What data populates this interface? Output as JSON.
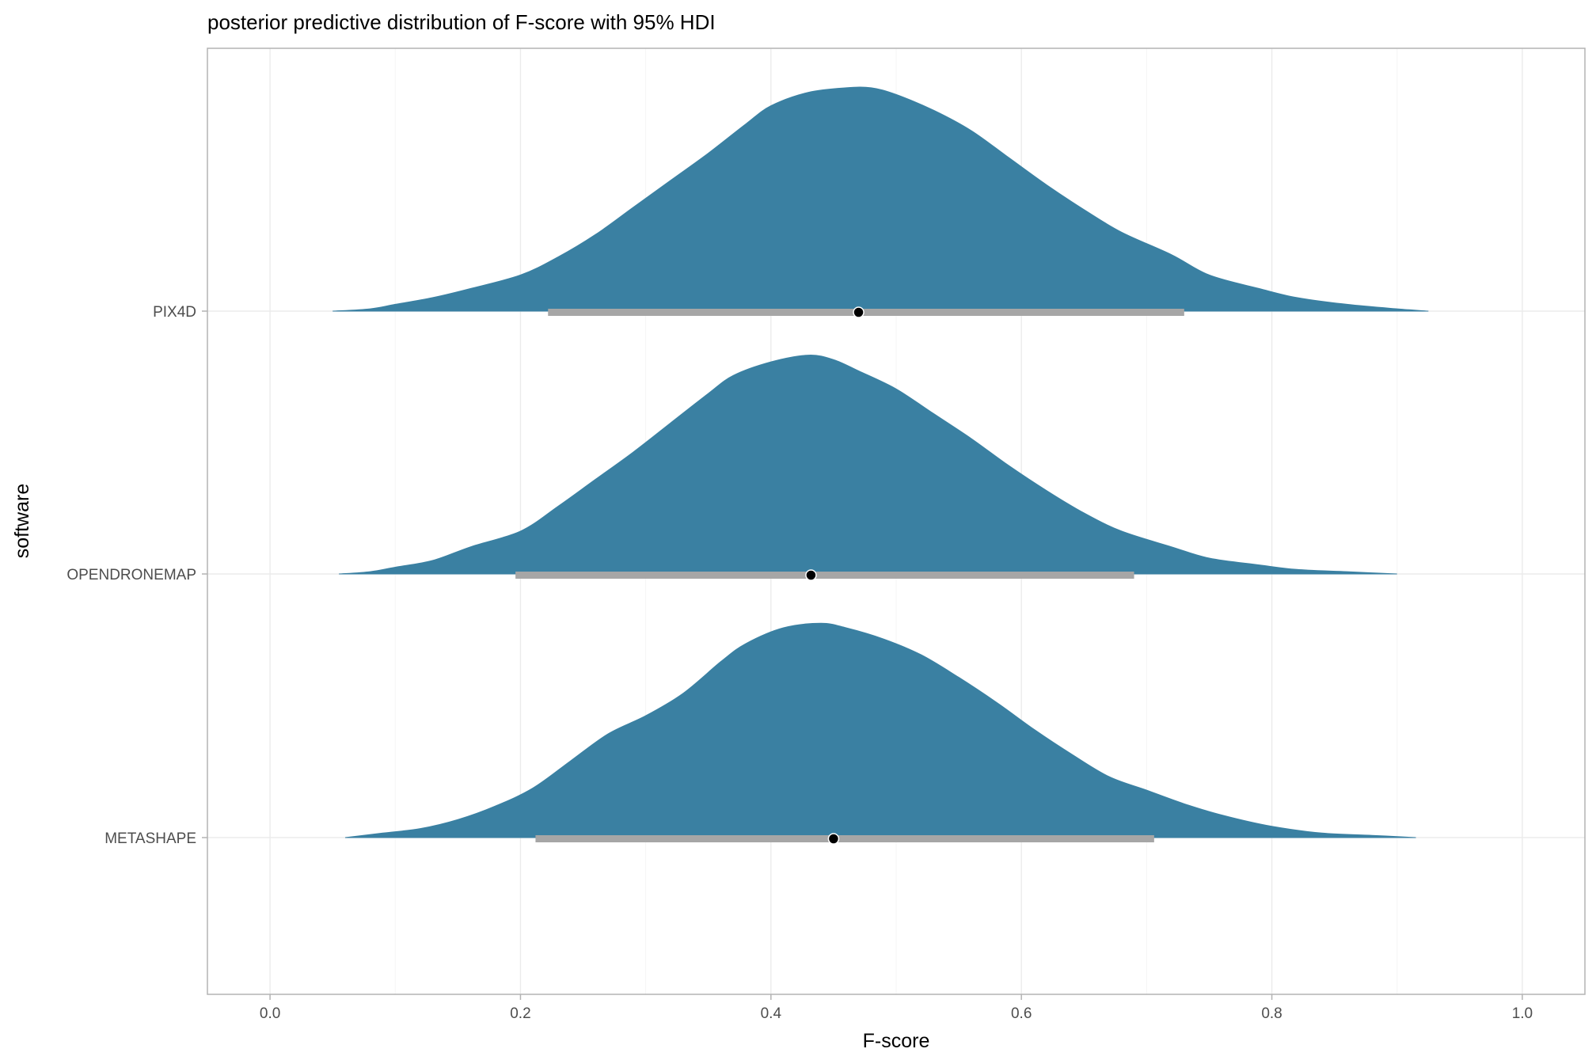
{
  "chart_data": {
    "type": "area",
    "subtype": "ridgeline-density-with-interval",
    "title": "posterior predictive distribution of F-score with 95% HDI",
    "xlabel": "F-score",
    "ylabel": "software",
    "xlim": [
      -0.05,
      1.05
    ],
    "x_ticks": [
      0.0,
      0.2,
      0.4,
      0.6,
      0.8,
      1.0
    ],
    "x_tick_labels": [
      "0.0",
      "0.2",
      "0.4",
      "0.6",
      "0.8",
      "1.0"
    ],
    "categories": [
      "PIX4D",
      "OPENDRONEMAP",
      "METASHAPE"
    ],
    "grid": true,
    "legend": "none",
    "colors": {
      "density_fill": "#3a80a2",
      "interval": "#a6a6a6",
      "point": "#000000"
    },
    "series": [
      {
        "category": "PIX4D",
        "point_estimate": 0.47,
        "hdi_95": [
          0.222,
          0.73
        ],
        "density": {
          "x": [
            0.05,
            0.08,
            0.1,
            0.13,
            0.16,
            0.2,
            0.23,
            0.26,
            0.29,
            0.32,
            0.35,
            0.38,
            0.4,
            0.43,
            0.46,
            0.48,
            0.5,
            0.53,
            0.56,
            0.59,
            0.62,
            0.65,
            0.68,
            0.72,
            0.75,
            0.79,
            0.82,
            0.86,
            0.9,
            0.925
          ],
          "y": [
            0.0,
            0.01,
            0.03,
            0.06,
            0.1,
            0.16,
            0.24,
            0.34,
            0.46,
            0.58,
            0.7,
            0.83,
            0.91,
            0.97,
            0.99,
            0.99,
            0.96,
            0.89,
            0.8,
            0.68,
            0.56,
            0.45,
            0.35,
            0.25,
            0.16,
            0.1,
            0.06,
            0.03,
            0.01,
            0.0
          ]
        }
      },
      {
        "category": "OPENDRONEMAP",
        "point_estimate": 0.432,
        "hdi_95": [
          0.196,
          0.69
        ],
        "density": {
          "x": [
            0.055,
            0.08,
            0.1,
            0.13,
            0.16,
            0.2,
            0.23,
            0.26,
            0.29,
            0.32,
            0.35,
            0.37,
            0.4,
            0.43,
            0.45,
            0.47,
            0.5,
            0.53,
            0.56,
            0.59,
            0.62,
            0.65,
            0.68,
            0.72,
            0.75,
            0.79,
            0.82,
            0.86,
            0.9
          ],
          "y": [
            0.0,
            0.01,
            0.03,
            0.06,
            0.12,
            0.19,
            0.3,
            0.42,
            0.54,
            0.67,
            0.8,
            0.88,
            0.94,
            0.97,
            0.95,
            0.9,
            0.82,
            0.71,
            0.6,
            0.48,
            0.37,
            0.27,
            0.19,
            0.12,
            0.07,
            0.04,
            0.02,
            0.01,
            0.0
          ]
        }
      },
      {
        "category": "METASHAPE",
        "point_estimate": 0.45,
        "hdi_95": [
          0.212,
          0.706
        ],
        "density": {
          "x": [
            0.06,
            0.09,
            0.12,
            0.15,
            0.18,
            0.21,
            0.24,
            0.27,
            0.3,
            0.33,
            0.36,
            0.38,
            0.41,
            0.44,
            0.46,
            0.49,
            0.52,
            0.55,
            0.58,
            0.61,
            0.64,
            0.67,
            0.7,
            0.73,
            0.76,
            0.8,
            0.84,
            0.88,
            0.915
          ],
          "y": [
            0.0,
            0.02,
            0.04,
            0.08,
            0.14,
            0.22,
            0.34,
            0.46,
            0.54,
            0.64,
            0.78,
            0.86,
            0.93,
            0.95,
            0.93,
            0.88,
            0.81,
            0.71,
            0.6,
            0.48,
            0.37,
            0.27,
            0.21,
            0.15,
            0.1,
            0.05,
            0.02,
            0.01,
            0.0
          ]
        }
      }
    ]
  }
}
